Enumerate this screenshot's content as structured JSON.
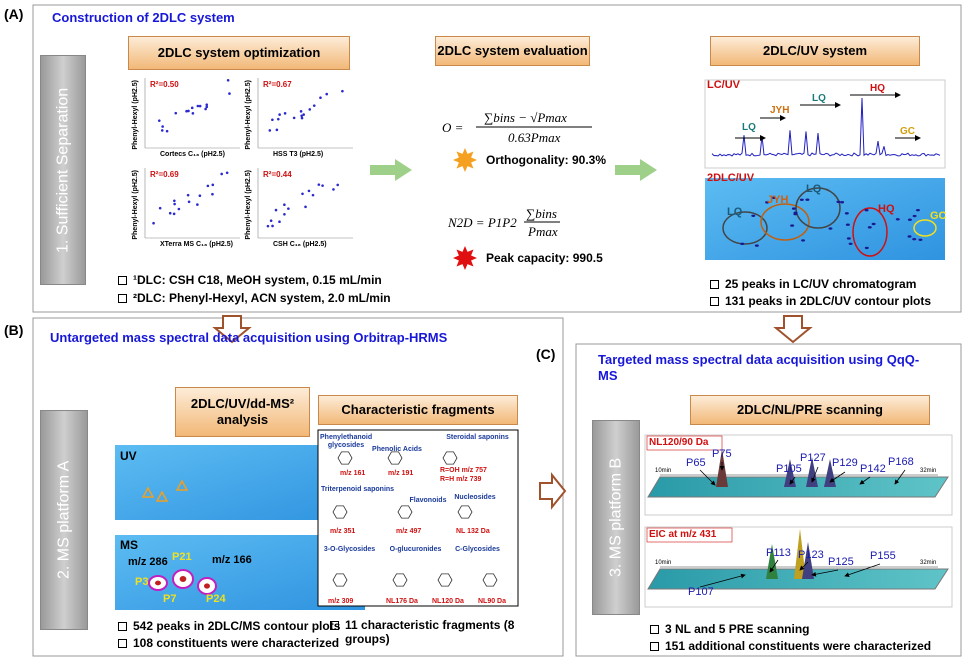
{
  "label_a": "(A)",
  "label_b": "(B)",
  "label_c": "(C)",
  "panel_a": {
    "title": "Construction of 2DLC system",
    "side": "1. Sufficient Separation",
    "optimization": {
      "header": "2DLC system optimization",
      "plots": [
        {
          "r2": "R²=0.50",
          "x_label": "Cortecs C₁₈ (pH2.5)",
          "y_label": "Phenyl-Hexyl (pH2.5)"
        },
        {
          "r2": "R²=0.67",
          "x_label": "HSS T3 (pH2.5)",
          "y_label": "Phenyl-Hexyl (pH2.5)"
        },
        {
          "r2": "R²=0.69",
          "x_label": "XTerra MS C₁₈ (pH2.5)",
          "y_label": "Phenyl-Hexyl (pH2.5)"
        },
        {
          "r2": "R²=0.44",
          "x_label": "CSH C₁₈ (pH2.5)",
          "y_label": "Phenyl-Hexyl (pH2.5)"
        }
      ],
      "bullets": [
        "¹DLC: CSH C18, MeOH system, 0.15 mL/min",
        "²DLC: Phenyl-Hexyl, ACN system, 2.0 mL/min"
      ]
    },
    "evaluation": {
      "header": "2DLC system evaluation",
      "formula_o": {
        "lhs": "O =",
        "numerator": "∑bins − √Pmax",
        "denominator": "0.63Pmax"
      },
      "orthogonality": "Orthogonality: 90.3%",
      "formula_n": {
        "lhs": "N2D = P1P2",
        "numerator": "∑bins",
        "denominator": "Pmax"
      },
      "peak_capacity": "Peak capacity: 990.5"
    },
    "uv": {
      "header": "2DLC/UV system",
      "lc_title": "LC/UV",
      "lc_labels": [
        "LQ",
        "JYH",
        "LQ",
        "HQ",
        "GC"
      ],
      "contour_title": "2DLC/UV",
      "contour_labels": [
        "LQ",
        "JYH",
        "LQ",
        "HQ",
        "GC"
      ],
      "bullets": [
        "25 peaks in LC/UV chromatogram",
        "131 peaks in 2DLC/UV contour plots"
      ]
    }
  },
  "panel_b": {
    "title": "Untargeted mass spectral data acquisition using Orbitrap-HRMS",
    "side": "2. MS platform A",
    "analysis_header": "2DLC/UV/dd-MS² analysis",
    "uv_label": "UV",
    "ms_label": "MS",
    "ms_annotations": [
      "m/z 286",
      "P21",
      "m/z 166",
      "P3",
      "P7",
      "P24"
    ],
    "fragments_header": "Characteristic fragments",
    "fragments": [
      "Phenylethanoid glycosides",
      "Phenolic Acids",
      "Steroidal saponins",
      "m/z 161",
      "m/z 191",
      "R=OH m/z 757",
      "R=H m/z 739",
      "Triterpenoid saponins",
      "Nucleosides",
      "Flavonoids",
      "m/z 351",
      "m/z 497",
      "NL 132 Da",
      "3-O-Glycosides",
      "O-glucuronides",
      "C-Glycosides",
      "m/z 309",
      "NL176 Da",
      "NL120 Da",
      "NL90 Da"
    ],
    "bullets": [
      "542 peaks in 2DLC/MS contour plots",
      "108 constituents were characterized"
    ],
    "fragments_bullet": "11 characteristic fragments (8 groups)"
  },
  "panel_c": {
    "title": "Targeted mass spectral data acquisition using QqQ-MS",
    "side": "3. MS platform B",
    "header": "2DLC/NL/PRE scanning",
    "nl_title": "NL120/90 Da",
    "nl_peaks": [
      "P65",
      "P75",
      "P105",
      "P127",
      "P129",
      "P142",
      "P168"
    ],
    "nl_axis": [
      "10min",
      "32min"
    ],
    "eic_title": "EIC at m/z 431",
    "eic_peaks": [
      "P107",
      "P113",
      "P123",
      "P125",
      "P155"
    ],
    "eic_axis": [
      "10min",
      "32min"
    ],
    "bullets": [
      "3 NL and 5 PRE scanning",
      "151 additional constituents were characterized"
    ]
  }
}
